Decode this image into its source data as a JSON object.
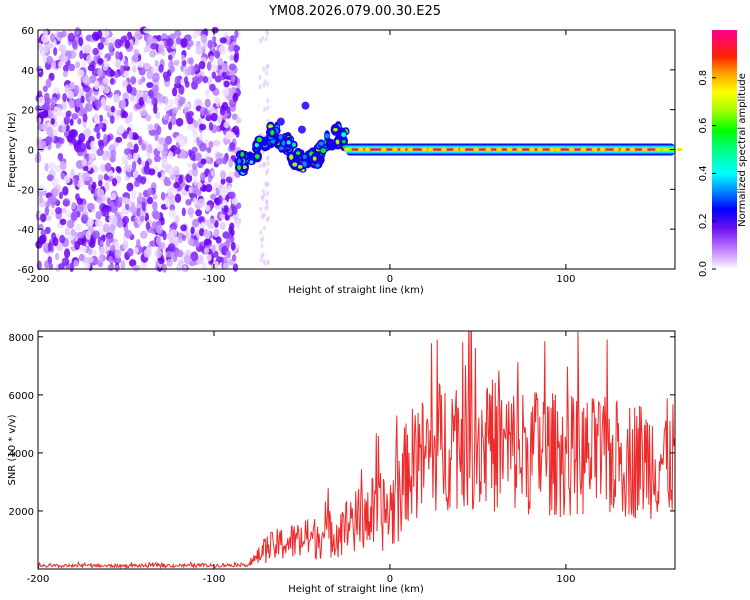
{
  "figure_title": "YM08.2026.079.00.30.E25",
  "chart_data": [
    {
      "type": "heatmap",
      "title": "YM08.2026.079.00.30.E25",
      "xlabel": "Height of straight line (km)",
      "ylabel": "Frequency (Hz)",
      "xlim": [
        -200,
        162
      ],
      "ylim": [
        -60,
        60
      ],
      "xticks": [
        -200,
        -100,
        0,
        100
      ],
      "yticks": [
        60,
        40,
        20,
        0,
        -20,
        -40,
        -60
      ],
      "colorbar": {
        "label": "Normalized spectral amplitude",
        "range": [
          0,
          1
        ],
        "ticks": [
          0.0,
          0.2,
          0.4,
          0.6,
          0.8
        ]
      },
      "regions": [
        {
          "name": "broadband noise",
          "x_range": [
            -200,
            -86
          ],
          "freq_range": [
            -60,
            60
          ],
          "amplitude": 0.05
        },
        {
          "name": "scattered onset",
          "x_range": [
            -86,
            -25
          ],
          "freq_range": [
            -12,
            25
          ],
          "amplitude": 0.3
        },
        {
          "name": "narrowband tone",
          "x_range": [
            -25,
            162
          ],
          "freq": 0,
          "amplitude": 0.95
        }
      ]
    },
    {
      "type": "line",
      "xlabel": "Height of straight line (km)",
      "ylabel": "SNR (10 * v/v)",
      "xlim": [
        -200,
        162
      ],
      "ylim": [
        0,
        8200
      ],
      "xticks": [
        -200,
        -100,
        0,
        100
      ],
      "yticks": [
        2000,
        4000,
        6000,
        8000
      ],
      "series": [
        {
          "name": "SNR",
          "color": "#ee2a2a",
          "envelope": {
            "x": [
              -200,
              -100,
              -80,
              -70,
              -60,
              -40,
              -30,
              -20,
              -10,
              0,
              5,
              10,
              20,
              30,
              40,
              50,
              70,
              100,
              130,
              162
            ],
            "y": [
              100,
              120,
              150,
              700,
              900,
              1100,
              1300,
              1600,
              1900,
              2000,
              2500,
              3500,
              3900,
              4300,
              4600,
              4400,
              4100,
              3900,
              3800,
              3800
            ]
          }
        }
      ]
    }
  ]
}
